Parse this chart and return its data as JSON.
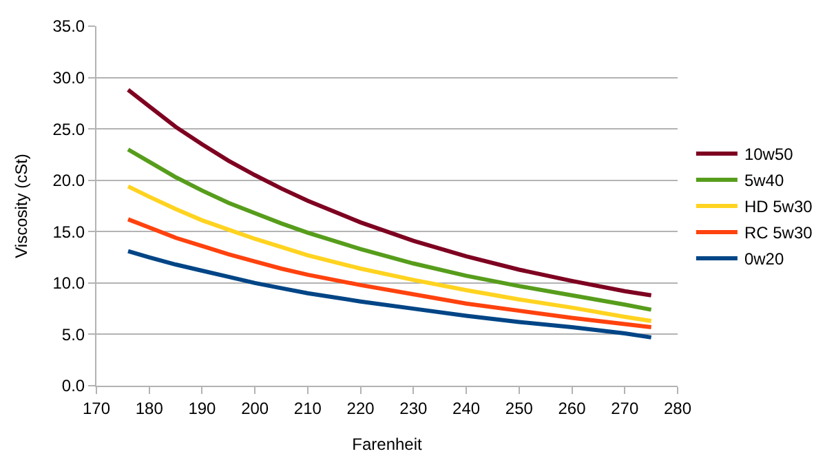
{
  "chart_data": {
    "type": "line",
    "xlabel": "Farenheit",
    "ylabel": "Viscosity (cSt)",
    "x": [
      176,
      180,
      185,
      190,
      195,
      200,
      205,
      210,
      220,
      230,
      240,
      250,
      260,
      270,
      275
    ],
    "series": [
      {
        "name": "10w50",
        "color": "#7e0021",
        "values": [
          28.8,
          27.2,
          25.2,
          23.5,
          21.9,
          20.5,
          19.2,
          18.0,
          15.9,
          14.1,
          12.6,
          11.3,
          10.2,
          9.2,
          8.8
        ]
      },
      {
        "name": "5w40",
        "color": "#579d1c",
        "values": [
          23.0,
          21.8,
          20.3,
          19.0,
          17.8,
          16.8,
          15.8,
          14.9,
          13.3,
          11.9,
          10.7,
          9.7,
          8.8,
          7.9,
          7.4
        ]
      },
      {
        "name": "HD 5w30",
        "color": "#ffd320",
        "values": [
          19.4,
          18.4,
          17.2,
          16.1,
          15.2,
          14.3,
          13.5,
          12.7,
          11.4,
          10.3,
          9.3,
          8.4,
          7.6,
          6.7,
          6.3
        ]
      },
      {
        "name": "RC 5w30",
        "color": "#ff420e",
        "values": [
          16.2,
          15.4,
          14.4,
          13.6,
          12.8,
          12.1,
          11.4,
          10.8,
          9.8,
          8.9,
          8.0,
          7.3,
          6.6,
          6.0,
          5.7
        ]
      },
      {
        "name": "0w20",
        "color": "#004586",
        "values": [
          13.1,
          12.5,
          11.8,
          11.2,
          10.6,
          10.0,
          9.5,
          9.0,
          8.2,
          7.5,
          6.8,
          6.2,
          5.7,
          5.1,
          4.7
        ]
      }
    ],
    "xlim": [
      170,
      280
    ],
    "xticks": [
      170,
      180,
      190,
      200,
      210,
      220,
      230,
      240,
      250,
      260,
      270,
      280
    ],
    "ylim": [
      0,
      35
    ],
    "yticks": [
      {
        "value": 0,
        "label": "0.0"
      },
      {
        "value": 5,
        "label": "5.0"
      },
      {
        "value": 10,
        "label": "10.0"
      },
      {
        "value": 15,
        "label": "15.0"
      },
      {
        "value": 20,
        "label": "20.0"
      },
      {
        "value": 25,
        "label": "25.0"
      },
      {
        "value": 30,
        "label": "30.0"
      },
      {
        "value": 35,
        "label": "35.0"
      }
    ],
    "grid": "y",
    "legend": "right",
    "marker": "none",
    "line_style": "solid"
  }
}
